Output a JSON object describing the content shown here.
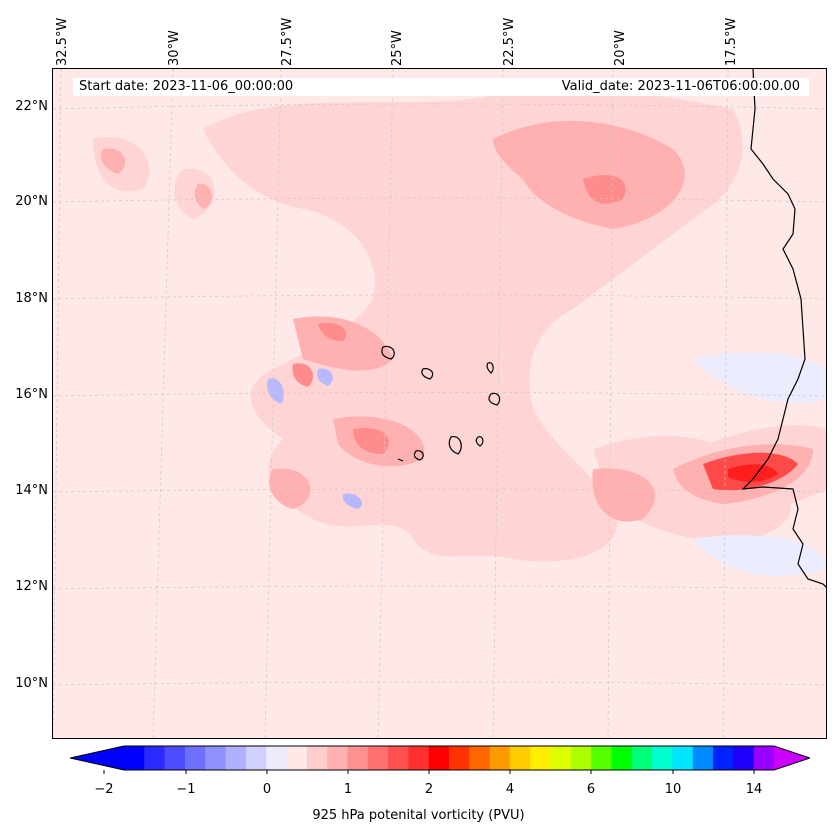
{
  "header": {
    "start_date": "Start date: 2023-11-06_00:00:00",
    "valid_date": "Valid_date: 2023-11-06T06:00:00.00"
  },
  "lon_labels": [
    "32.5°W",
    "30°W",
    "27.5°W",
    "25°W",
    "22.5°W",
    "20°W",
    "17.5°W"
  ],
  "lat_labels": [
    "22°N",
    "20°N",
    "18°N",
    "16°N",
    "14°N",
    "12°N",
    "10°N"
  ],
  "colorbar": {
    "title": "925 hPa potenital vorticity (PVU)",
    "tick_labels": [
      "−2",
      "−1",
      "0",
      "1",
      "2",
      "4",
      "6",
      "10",
      "14"
    ],
    "colors": [
      "#0000ff",
      "#2b2bff",
      "#4d4dff",
      "#7070ff",
      "#9090ff",
      "#b0b0ff",
      "#d0d0ff",
      "#ececff",
      "#ffe8e8",
      "#ffcccc",
      "#ffb0b0",
      "#ff9090",
      "#ff7070",
      "#ff5050",
      "#ff3030",
      "#ff0000",
      "#ff3300",
      "#ff6600",
      "#ff9900",
      "#ffcc00",
      "#ffee00",
      "#ddff00",
      "#aaff00",
      "#55ff00",
      "#00ff00",
      "#00ff77",
      "#00ffcc",
      "#00e5ff",
      "#0088ff",
      "#0022ff",
      "#2200ff",
      "#9900ff"
    ],
    "under_color": "#0000ff",
    "over_color": "#cc00ff"
  },
  "map_colors": {
    "background": "#ffe8e8",
    "light_pink": "#ffd4d4",
    "pink": "#ffb0b0",
    "mid_red": "#ff8c8c",
    "red": "#ff4a4a",
    "strong_red": "#ff1e1e",
    "light_blue": "#ececff",
    "blue": "#b8b8ff",
    "coastline": "#000000",
    "gridline": "#c8c8c8"
  }
}
